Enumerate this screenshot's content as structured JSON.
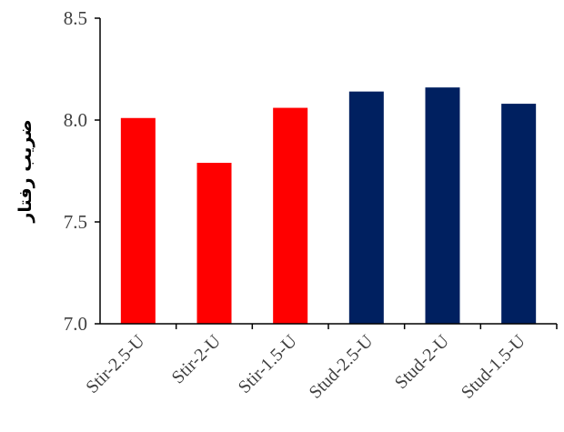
{
  "chart_data": {
    "type": "bar",
    "title": "",
    "xlabel": "",
    "ylabel": "ضریب رفتار",
    "categories": [
      "Stir-2.5-U",
      "Stir-2-U",
      "Stir-1.5-U",
      "Stud-2.5-U",
      "Stud-2-U",
      "Stud-1.5-U"
    ],
    "values": [
      8.01,
      7.79,
      8.06,
      8.14,
      8.16,
      8.08
    ],
    "colors": [
      "#ff0000",
      "#ff0000",
      "#ff0000",
      "#002060",
      "#002060",
      "#002060"
    ],
    "ylim": [
      7.0,
      8.5
    ],
    "yticks": [
      "7.0",
      "7.5",
      "8.0",
      "8.5"
    ],
    "grid": false,
    "legend": "none"
  }
}
